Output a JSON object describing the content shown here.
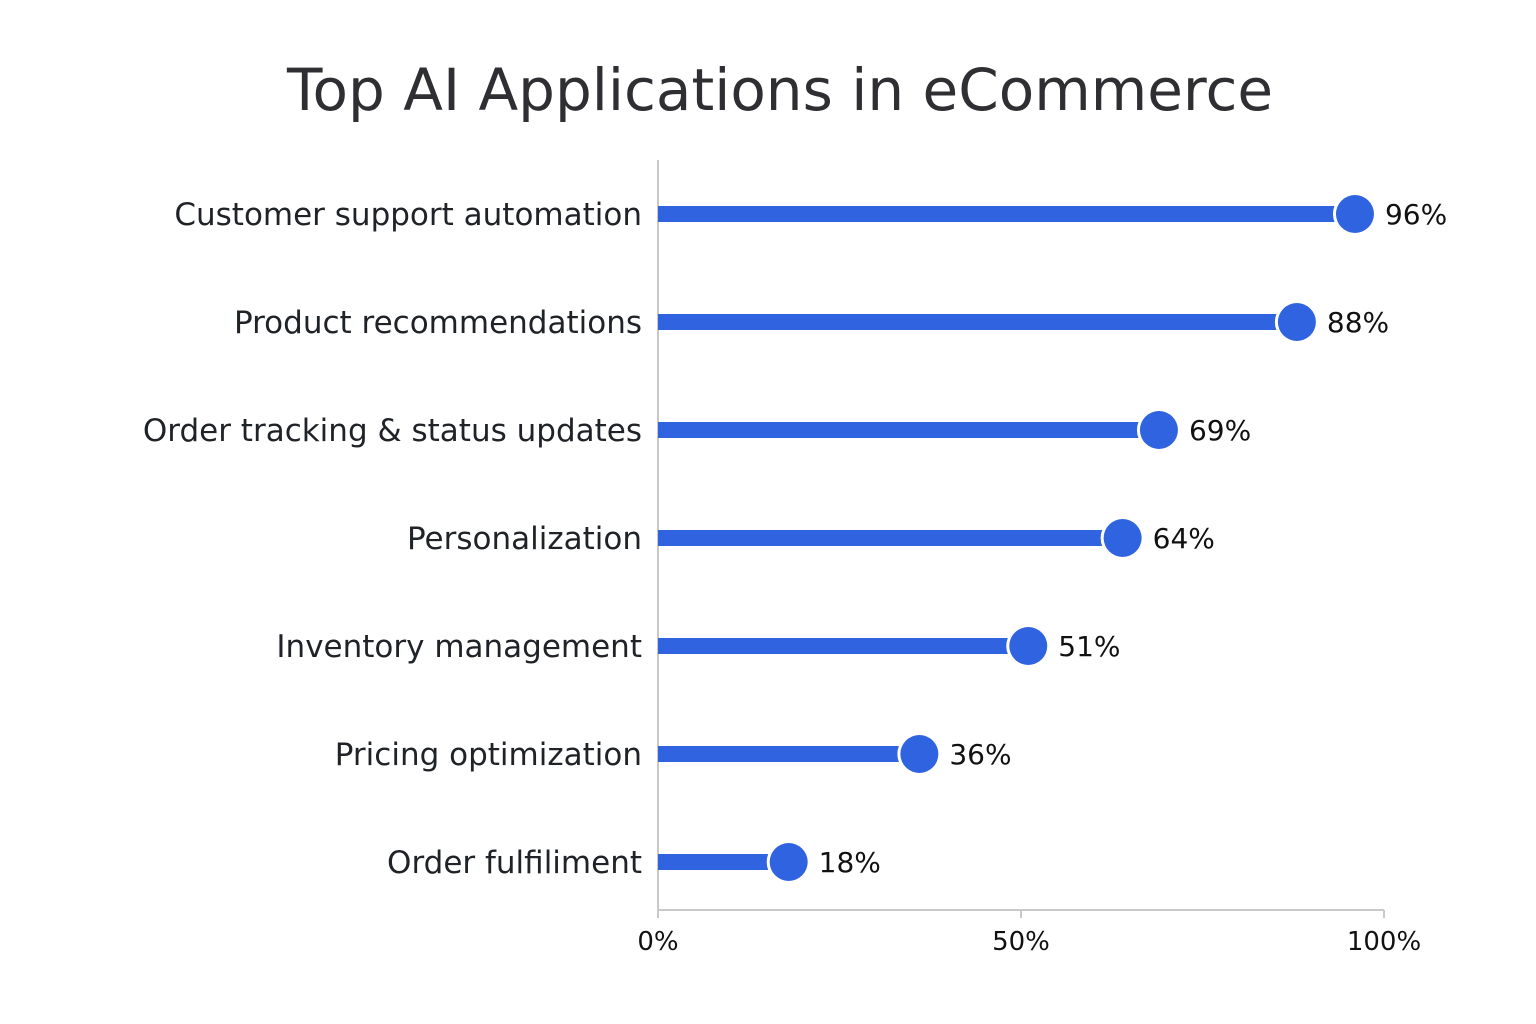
{
  "chart_data": {
    "type": "bar",
    "style": "lollipop",
    "orientation": "horizontal",
    "title": "Top AI Applications in eCommerce",
    "xlabel": "",
    "ylabel": "",
    "xlim": [
      0,
      100
    ],
    "unit": "%",
    "categories": [
      "Customer support automation",
      "Product recommendations",
      "Order tracking & status updates",
      "Personalization",
      "Inventory management",
      "Pricing optimization",
      "Order fulfiliment"
    ],
    "values": [
      96,
      88,
      69,
      64,
      51,
      36,
      18
    ],
    "value_labels": [
      "96%",
      "88%",
      "69%",
      "64%",
      "51%",
      "36%",
      "18%"
    ],
    "x_ticks": [
      0,
      50,
      100
    ],
    "x_tick_labels": [
      "0%",
      "50%",
      "100%"
    ],
    "grid": false,
    "legend": "none",
    "colors": {
      "bar": "#2f63df",
      "axis": "#c9c9c9",
      "title": "#2f2f33"
    }
  }
}
